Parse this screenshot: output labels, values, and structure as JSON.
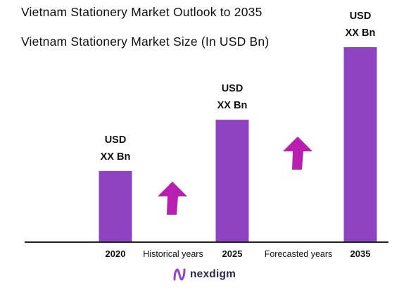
{
  "title": "Vietnam Stationery Market Outlook to 2035",
  "subtitle": "Vietnam Stationery Market Size (In USD Bn)",
  "chart_data": {
    "type": "bar",
    "title": "Vietnam Stationery Market Outlook to 2035",
    "subtitle": "Vietnam Stationery Market Size (In USD Bn)",
    "categories": [
      "2020",
      "2025",
      "2035"
    ],
    "values": [
      100,
      172,
      274
    ],
    "value_labels": [
      [
        "USD",
        "XX Bn"
      ],
      [
        "USD",
        "XX Bn"
      ],
      [
        "USD",
        "XX Bn"
      ]
    ],
    "value_note": "values are relative bar heights; the chart prints placeholder labels only",
    "ylim": [
      0,
      274
    ],
    "grid": false,
    "bar_color": "#8e44c2",
    "axis_color": "#222222",
    "annotations": [
      {
        "text": "Historical years",
        "between": [
          "2020",
          "2025"
        ]
      },
      {
        "text": "Forecasted years",
        "between": [
          "2025",
          "2035"
        ]
      }
    ],
    "arrow_color": "#b81fb0",
    "arrows": [
      {
        "between": [
          "2020",
          "2025"
        ],
        "direction": "up"
      },
      {
        "between": [
          "2025",
          "2035"
        ],
        "direction": "up"
      }
    ]
  },
  "brand": {
    "name": "nexdigm",
    "icon": "nexdigm-logo-icon",
    "color": "#2a2a4a"
  }
}
